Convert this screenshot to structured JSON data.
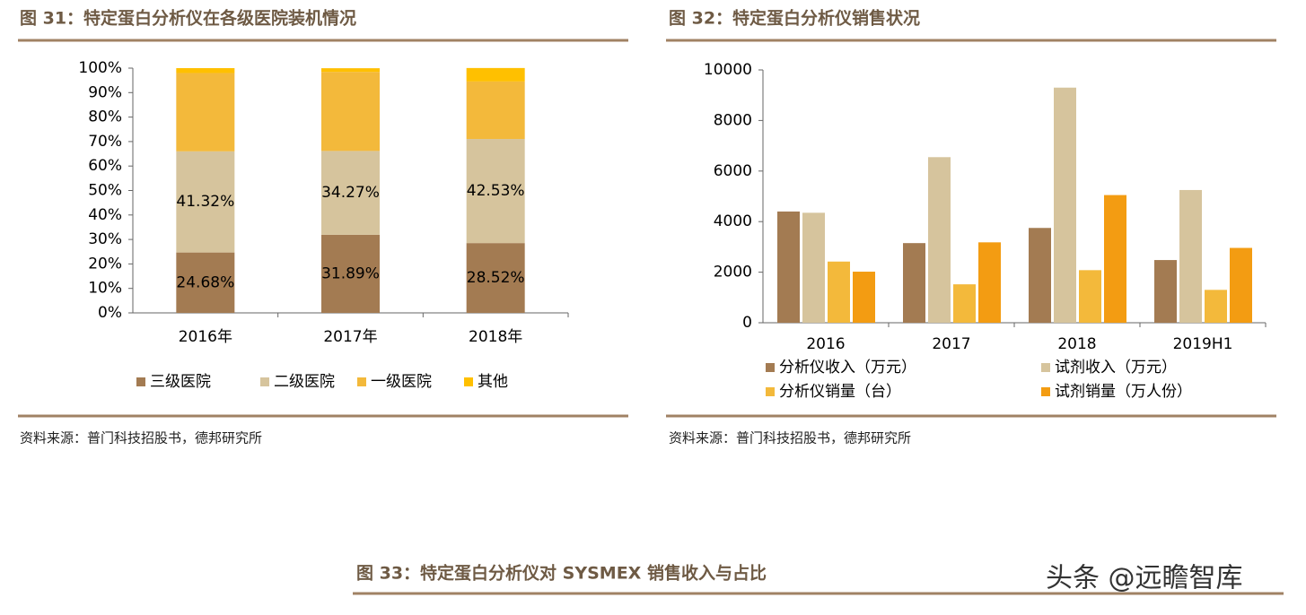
{
  "chart_data": [
    {
      "type": "stacked_bar",
      "title": "图 31：特定蛋白分析仪在各级医院装机情况",
      "categories": [
        "2016年",
        "2017年",
        "2018年"
      ],
      "series": [
        {
          "name": "三级医院",
          "color": "#a37b52",
          "values": [
            24.68,
            31.89,
            28.52
          ],
          "value_labels": [
            "24.68%",
            "31.89%",
            "28.52%"
          ]
        },
        {
          "name": "二级医院",
          "color": "#d6c49d",
          "values": [
            41.32,
            34.27,
            42.53
          ],
          "value_labels": [
            "41.32%",
            "34.27%",
            "42.53%"
          ]
        },
        {
          "name": "一级医院",
          "color": "#f3b93b",
          "values": [
            32.0,
            32.3,
            23.5
          ]
        },
        {
          "name": "其他",
          "color": "#ffc000",
          "values": [
            2.0,
            1.5,
            5.5
          ]
        }
      ],
      "ylim": [
        0,
        100
      ],
      "yticks": [
        {
          "value": 0,
          "label": "0%"
        },
        {
          "value": 10,
          "label": "10%"
        },
        {
          "value": 20,
          "label": "20%"
        },
        {
          "value": 30,
          "label": "30%"
        },
        {
          "value": 40,
          "label": "40%"
        },
        {
          "value": 50,
          "label": "50%"
        },
        {
          "value": 60,
          "label": "60%"
        },
        {
          "value": 70,
          "label": "70%"
        },
        {
          "value": 80,
          "label": "80%"
        },
        {
          "value": 90,
          "label": "90%"
        },
        {
          "value": 100,
          "label": "100%"
        }
      ],
      "source": "资料来源：普门科技招股书，德邦研究所"
    },
    {
      "type": "bar",
      "title": "图 32：特定蛋白分析仪销售状况",
      "categories": [
        "2016",
        "2017",
        "2018",
        "2019H1"
      ],
      "series": [
        {
          "name": "分析仪收入（万元）",
          "color": "#a37b52",
          "values": [
            4400,
            3150,
            3750,
            2480
          ]
        },
        {
          "name": "试剂收入（万元）",
          "color": "#d6c49d",
          "values": [
            4350,
            6550,
            9300,
            5250
          ]
        },
        {
          "name": "分析仪销量（台）",
          "color": "#f3b93b",
          "values": [
            2420,
            1520,
            2080,
            1300
          ]
        },
        {
          "name": "试剂销量（万人份）",
          "color": "#f39c12",
          "values": [
            2020,
            3180,
            5050,
            2960
          ]
        }
      ],
      "ylim": [
        0,
        10000
      ],
      "yticks": [
        0,
        2000,
        4000,
        6000,
        8000,
        10000
      ],
      "source": "资料来源：普门科技招股书，德邦研究所"
    }
  ],
  "next_figure_title": "图 33：特定蛋白分析仪对 SYSMEX 销售收入与占比",
  "watermark": "头条 @远瞻智库"
}
